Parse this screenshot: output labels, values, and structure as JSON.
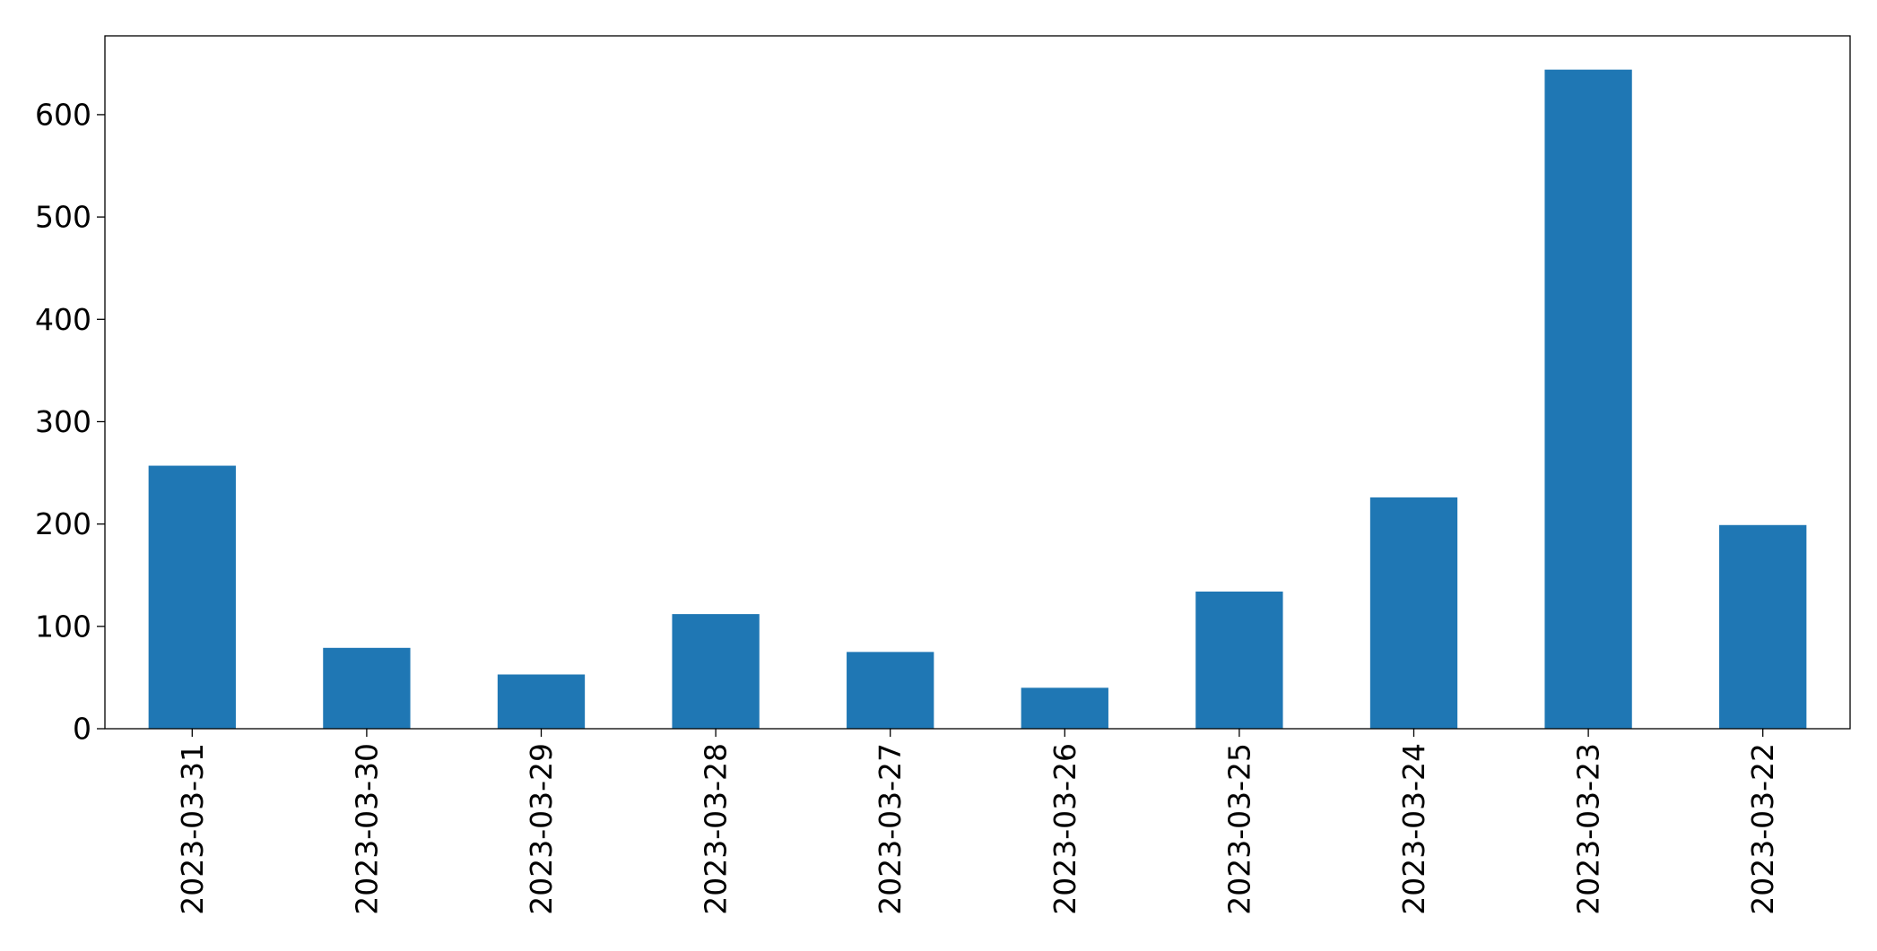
{
  "chart_data": {
    "type": "bar",
    "title": "",
    "xlabel": "",
    "ylabel": "",
    "categories": [
      "2023-03-31",
      "2023-03-30",
      "2023-03-29",
      "2023-03-28",
      "2023-03-27",
      "2023-03-26",
      "2023-03-25",
      "2023-03-24",
      "2023-03-23",
      "2023-03-22"
    ],
    "values": [
      257,
      79,
      53,
      112,
      75,
      40,
      134,
      226,
      644,
      199
    ],
    "ylim": [
      0,
      677
    ],
    "yticks": [
      0,
      100,
      200,
      300,
      400,
      500,
      600
    ],
    "ytick_labels": [
      "0",
      "100",
      "200",
      "300",
      "400",
      "500",
      "600"
    ],
    "grid": false,
    "legend": "none",
    "bar_color": "#1f77b4"
  }
}
